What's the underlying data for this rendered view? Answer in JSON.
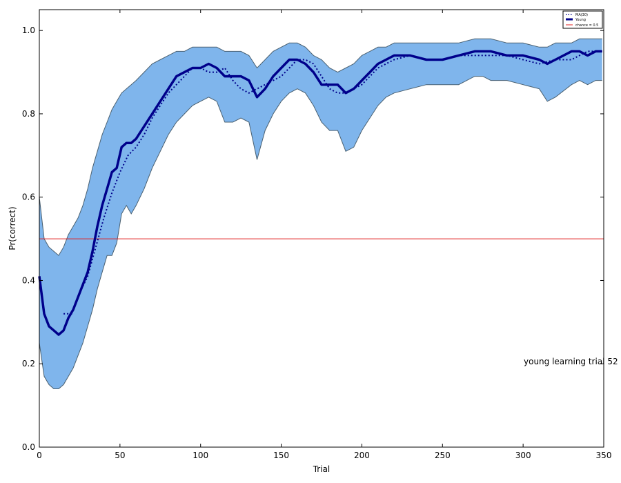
{
  "chart_data": {
    "type": "line",
    "title": "",
    "xlabel": "Trial",
    "ylabel": "Pr(correct)",
    "xlim": [
      0,
      350
    ],
    "ylim": [
      0.0,
      1.05
    ],
    "xticks": [
      0,
      50,
      100,
      150,
      200,
      250,
      300,
      350
    ],
    "xtick_labels": [
      "0",
      "50",
      "100",
      "150",
      "200",
      "250",
      "300",
      "350"
    ],
    "yticks": [
      0.0,
      0.2,
      0.4,
      0.6,
      0.8,
      1.0
    ],
    "ytick_labels": [
      "0.0",
      "0.2",
      "0.4",
      "0.6",
      "0.8",
      "1.0"
    ],
    "grid": false,
    "legend_position": "top-right",
    "legend": [
      "MA(30)",
      "Young",
      "chance = 0.5"
    ],
    "chance_level": 0.5,
    "annotation": "young learning trial  52",
    "colors": {
      "band_fill": "#7fb5ec",
      "band_edge": "#4a6070",
      "young_line": "#00008b",
      "ma_line": "#00008b",
      "chance_line": "#e02020"
    },
    "series": [
      {
        "name": "Young",
        "x": [
          0,
          3,
          6,
          9,
          12,
          15,
          18,
          21,
          24,
          27,
          30,
          33,
          36,
          39,
          42,
          45,
          48,
          51,
          54,
          57,
          60,
          65,
          70,
          75,
          80,
          85,
          90,
          95,
          100,
          105,
          110,
          115,
          120,
          125,
          130,
          135,
          140,
          145,
          150,
          155,
          160,
          165,
          170,
          175,
          180,
          185,
          190,
          195,
          200,
          205,
          210,
          215,
          220,
          230,
          240,
          250,
          260,
          270,
          275,
          280,
          290,
          300,
          310,
          315,
          320,
          330,
          335,
          340,
          345,
          349
        ],
        "values": [
          0.41,
          0.32,
          0.29,
          0.28,
          0.27,
          0.28,
          0.31,
          0.33,
          0.36,
          0.39,
          0.42,
          0.47,
          0.53,
          0.58,
          0.62,
          0.66,
          0.67,
          0.72,
          0.73,
          0.73,
          0.74,
          0.77,
          0.8,
          0.83,
          0.86,
          0.89,
          0.9,
          0.91,
          0.91,
          0.92,
          0.91,
          0.89,
          0.89,
          0.89,
          0.88,
          0.84,
          0.86,
          0.89,
          0.91,
          0.93,
          0.93,
          0.92,
          0.9,
          0.87,
          0.87,
          0.87,
          0.85,
          0.86,
          0.88,
          0.9,
          0.92,
          0.93,
          0.94,
          0.94,
          0.93,
          0.93,
          0.94,
          0.95,
          0.95,
          0.95,
          0.94,
          0.94,
          0.93,
          0.92,
          0.93,
          0.95,
          0.95,
          0.94,
          0.95,
          0.95
        ]
      },
      {
        "name": "MA(30)",
        "x": [
          15,
          20,
          25,
          30,
          35,
          40,
          45,
          50,
          55,
          60,
          65,
          70,
          75,
          80,
          85,
          90,
          95,
          100,
          105,
          110,
          115,
          120,
          125,
          130,
          135,
          140,
          145,
          150,
          155,
          160,
          165,
          170,
          175,
          180,
          185,
          190,
          195,
          200,
          205,
          210,
          215,
          220,
          230,
          240,
          250,
          260,
          270,
          280,
          290,
          300,
          310,
          320,
          330,
          335,
          340,
          345,
          349
        ],
        "values": [
          0.32,
          0.32,
          0.37,
          0.41,
          0.48,
          0.55,
          0.61,
          0.66,
          0.7,
          0.72,
          0.75,
          0.79,
          0.82,
          0.85,
          0.87,
          0.89,
          0.91,
          0.91,
          0.9,
          0.9,
          0.91,
          0.88,
          0.86,
          0.85,
          0.86,
          0.87,
          0.88,
          0.89,
          0.91,
          0.93,
          0.93,
          0.92,
          0.89,
          0.86,
          0.85,
          0.85,
          0.86,
          0.87,
          0.89,
          0.91,
          0.92,
          0.93,
          0.94,
          0.93,
          0.93,
          0.94,
          0.94,
          0.94,
          0.94,
          0.93,
          0.92,
          0.93,
          0.93,
          0.94,
          0.95,
          0.95,
          0.95
        ]
      }
    ],
    "band": {
      "x": [
        0,
        3,
        6,
        9,
        12,
        15,
        18,
        21,
        24,
        27,
        30,
        33,
        36,
        39,
        42,
        45,
        48,
        51,
        54,
        57,
        60,
        65,
        70,
        75,
        80,
        85,
        90,
        95,
        100,
        105,
        110,
        115,
        120,
        125,
        130,
        135,
        140,
        145,
        150,
        155,
        160,
        165,
        170,
        175,
        180,
        185,
        190,
        195,
        200,
        205,
        210,
        215,
        220,
        230,
        240,
        250,
        260,
        270,
        275,
        280,
        290,
        300,
        310,
        315,
        320,
        330,
        335,
        340,
        345,
        349
      ],
      "upper": [
        0.6,
        0.5,
        0.48,
        0.47,
        0.46,
        0.48,
        0.51,
        0.53,
        0.55,
        0.58,
        0.62,
        0.67,
        0.71,
        0.75,
        0.78,
        0.81,
        0.83,
        0.85,
        0.86,
        0.87,
        0.88,
        0.9,
        0.92,
        0.93,
        0.94,
        0.95,
        0.95,
        0.96,
        0.96,
        0.96,
        0.96,
        0.95,
        0.95,
        0.95,
        0.94,
        0.91,
        0.93,
        0.95,
        0.96,
        0.97,
        0.97,
        0.96,
        0.94,
        0.93,
        0.91,
        0.9,
        0.91,
        0.92,
        0.94,
        0.95,
        0.96,
        0.96,
        0.97,
        0.97,
        0.97,
        0.97,
        0.97,
        0.98,
        0.98,
        0.98,
        0.97,
        0.97,
        0.96,
        0.96,
        0.97,
        0.97,
        0.98,
        0.98,
        0.98,
        0.98
      ],
      "lower": [
        0.25,
        0.17,
        0.15,
        0.14,
        0.14,
        0.15,
        0.17,
        0.19,
        0.22,
        0.25,
        0.29,
        0.33,
        0.38,
        0.42,
        0.46,
        0.46,
        0.49,
        0.56,
        0.58,
        0.56,
        0.58,
        0.62,
        0.67,
        0.71,
        0.75,
        0.78,
        0.8,
        0.82,
        0.83,
        0.84,
        0.83,
        0.78,
        0.78,
        0.79,
        0.78,
        0.69,
        0.76,
        0.8,
        0.83,
        0.85,
        0.86,
        0.85,
        0.82,
        0.78,
        0.76,
        0.76,
        0.71,
        0.72,
        0.76,
        0.79,
        0.82,
        0.84,
        0.85,
        0.86,
        0.87,
        0.87,
        0.87,
        0.89,
        0.89,
        0.88,
        0.88,
        0.87,
        0.86,
        0.83,
        0.84,
        0.87,
        0.88,
        0.87,
        0.88,
        0.88
      ]
    }
  }
}
